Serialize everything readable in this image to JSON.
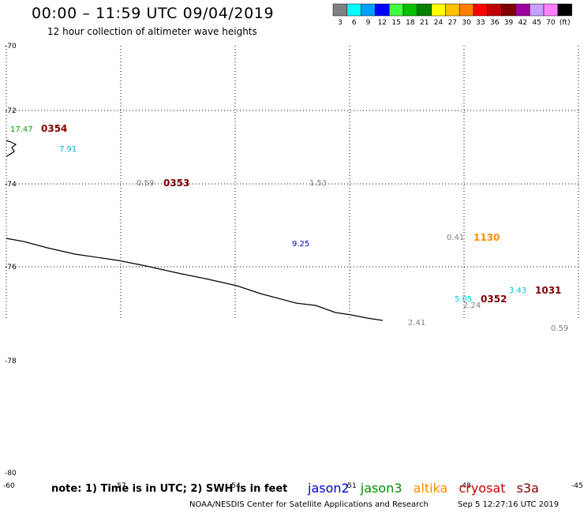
{
  "header": {
    "title": "00:00 – 11:59 UTC 09/04/2019",
    "subtitle": "12 hour collection of altimeter wave heights"
  },
  "scale": {
    "unit": "(ft)",
    "bins": [
      {
        "label": "3",
        "color": "#808080"
      },
      {
        "label": "6",
        "color": "#00ffff"
      },
      {
        "label": "9",
        "color": "#00a0ff"
      },
      {
        "label": "12",
        "color": "#0000ff"
      },
      {
        "label": "15",
        "color": "#40ff40"
      },
      {
        "label": "18",
        "color": "#00c000"
      },
      {
        "label": "21",
        "color": "#008000"
      },
      {
        "label": "24",
        "color": "#ffff00"
      },
      {
        "label": "27",
        "color": "#ffc000"
      },
      {
        "label": "30",
        "color": "#ff8000"
      },
      {
        "label": "33",
        "color": "#ff0000"
      },
      {
        "label": "36",
        "color": "#c00000"
      },
      {
        "label": "39",
        "color": "#800000"
      },
      {
        "label": "42",
        "color": "#a000a0"
      },
      {
        "label": "45",
        "color": "#c8a0ff"
      },
      {
        "label": "70",
        "color": "#ff80ff"
      },
      {
        "label": "",
        "color": "#000000"
      }
    ]
  },
  "map": {
    "lat_labels": [
      "-70",
      "-72",
      "-74",
      "-76",
      "-78",
      "-80"
    ],
    "lon_labels": [
      "-60",
      "-57",
      "-54",
      "-51",
      "-48",
      "-45"
    ],
    "observations": [
      {
        "text": "17.47",
        "color": "#00a000"
      },
      {
        "text": "7.91",
        "color": "#00b0c8"
      },
      {
        "text": "0.59",
        "color": "#808080"
      },
      {
        "text": "1.53",
        "color": "#808080"
      },
      {
        "text": "9.25",
        "color": "#0000c0"
      },
      {
        "text": "0.41",
        "color": "#808080"
      },
      {
        "text": "5.05",
        "color": "#00c8e0"
      },
      {
        "text": "2.24",
        "color": "#808080"
      },
      {
        "text": "3.43",
        "color": "#00c8e0"
      },
      {
        "text": "2.41",
        "color": "#808080"
      },
      {
        "text": "0.59",
        "color": "#808080"
      }
    ],
    "passes": [
      {
        "text": "0354",
        "color": "#800000"
      },
      {
        "text": "0353",
        "color": "#800000"
      },
      {
        "text": "1130",
        "color": "#ff8c00"
      },
      {
        "text": "0352",
        "color": "#800000"
      },
      {
        "text": "1031",
        "color": "#800000"
      }
    ]
  },
  "legend": {
    "satellites": [
      {
        "name": "jason2",
        "color": "#0000cc"
      },
      {
        "name": "jason3",
        "color": "#009000"
      },
      {
        "name": "altika",
        "color": "#ff8c00"
      },
      {
        "name": "cryosat",
        "color": "#cc0000"
      },
      {
        "name": "s3a",
        "color": "#800000"
      }
    ]
  },
  "footer": {
    "note": "note: 1) Time is in UTC; 2) SWH is in feet",
    "credit": "NOAA/NESDIS Center for Satellite Applications and Research",
    "timestamp": "Sep  5 12:27:16 UTC 2019"
  }
}
